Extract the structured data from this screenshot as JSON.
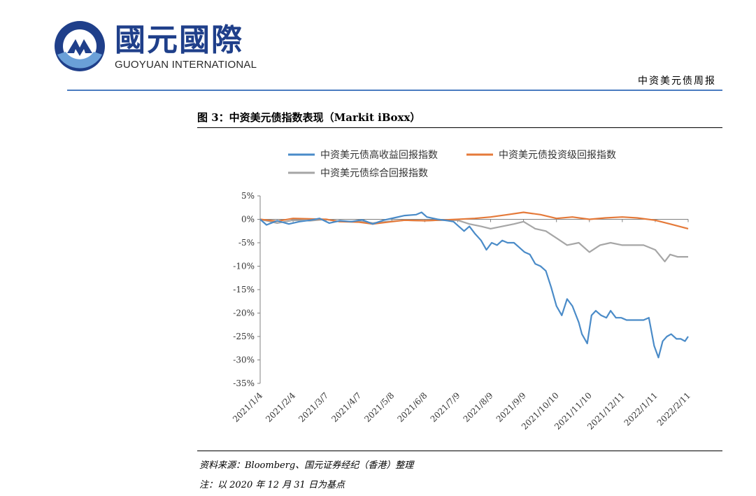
{
  "header": {
    "logo_cn": "國元國際",
    "logo_en": "GUOYUAN INTERNATIONAL",
    "report_name": "中资美元债周报",
    "colors": {
      "brand_blue": "#1f3f8a",
      "accent_blue": "#4a7cc0"
    }
  },
  "figure": {
    "title": "图 3：中资美元债指数表现（Markit iBoxx）",
    "source_note": "资料来源：Bloomberg、国元证券经纪（香港）整理",
    "base_note": "注：以 2020 年 12 月 31 日为基点"
  },
  "chart_data": {
    "type": "line",
    "title": "",
    "xlabel": "",
    "ylabel": "",
    "ylim": [
      -35,
      5
    ],
    "yticks": [
      "5%",
      "0%",
      "-5%",
      "-10%",
      "-15%",
      "-20%",
      "-25%",
      "-30%",
      "-35%"
    ],
    "x_tick_labels": [
      "2021/1/4",
      "2021/2/4",
      "2021/3/7",
      "2021/4/7",
      "2021/5/8",
      "2021/6/8",
      "2021/7/9",
      "2021/8/9",
      "2021/9/9",
      "2021/10/10",
      "2021/11/10",
      "2021/12/11",
      "2022/1/11",
      "2022/2/11"
    ],
    "legend_position": "top",
    "grid": false,
    "series": [
      {
        "name": "中资美元债高收益回报指数",
        "color": "#4a8bc8",
        "x": [
          "2021/1/4",
          "2021/1/10",
          "2021/1/20",
          "2021/1/31",
          "2021/2/10",
          "2021/2/20",
          "2021/3/1",
          "2021/3/10",
          "2021/3/20",
          "2021/3/31",
          "2021/4/10",
          "2021/4/20",
          "2021/4/30",
          "2021/5/10",
          "2021/5/20",
          "2021/5/31",
          "2021/6/5",
          "2021/6/10",
          "2021/6/20",
          "2021/6/30",
          "2021/7/5",
          "2021/7/10",
          "2021/7/15",
          "2021/7/20",
          "2021/7/25",
          "2021/7/31",
          "2021/8/5",
          "2021/8/10",
          "2021/8/15",
          "2021/8/20",
          "2021/8/25",
          "2021/8/31",
          "2021/9/5",
          "2021/9/10",
          "2021/9/15",
          "2021/9/20",
          "2021/9/25",
          "2021/9/30",
          "2021/10/5",
          "2021/10/10",
          "2021/10/15",
          "2021/10/20",
          "2021/10/25",
          "2021/10/31",
          "2021/11/3",
          "2021/11/8",
          "2021/11/12",
          "2021/11/16",
          "2021/11/21",
          "2021/11/26",
          "2021/11/30",
          "2021/12/5",
          "2021/12/10",
          "2021/12/15",
          "2021/12/20",
          "2021/12/25",
          "2021/12/31",
          "2022/1/5",
          "2022/1/10",
          "2022/1/14",
          "2022/1/18",
          "2022/1/22",
          "2022/1/26",
          "2022/1/31",
          "2022/2/4",
          "2022/2/8",
          "2022/2/11"
        ],
        "values": [
          0,
          -1.2,
          -0.3,
          -1.0,
          -0.5,
          -0.2,
          0.2,
          -0.8,
          -0.3,
          -0.5,
          -0.1,
          -1.0,
          -0.2,
          0.3,
          0.8,
          1.0,
          1.5,
          0.5,
          0.0,
          -0.3,
          -0.5,
          -1.5,
          -2.5,
          -1.5,
          -3.0,
          -4.5,
          -6.5,
          -5.0,
          -5.5,
          -4.5,
          -5.0,
          -5.0,
          -6.0,
          -7.0,
          -7.5,
          -9.5,
          -10.0,
          -11.0,
          -14.5,
          -18.5,
          -20.5,
          -17.0,
          -18.5,
          -22.0,
          -24.5,
          -26.5,
          -20.5,
          -19.5,
          -20.5,
          -21.0,
          -19.5,
          -21.0,
          -21.0,
          -21.5,
          -21.5,
          -21.5,
          -21.5,
          -21.0,
          -27.0,
          -29.5,
          -26.0,
          -25.0,
          -24.5,
          -25.5,
          -25.5,
          -26.0,
          -25.0
        ]
      },
      {
        "name": "中资美元债投资级回报指数",
        "color": "#e57a3a",
        "x": [
          "2021/1/4",
          "2021/1/20",
          "2021/2/4",
          "2021/2/20",
          "2021/3/7",
          "2021/3/20",
          "2021/4/7",
          "2021/4/20",
          "2021/5/8",
          "2021/5/20",
          "2021/6/8",
          "2021/6/20",
          "2021/7/9",
          "2021/7/25",
          "2021/8/9",
          "2021/8/25",
          "2021/9/9",
          "2021/9/25",
          "2021/10/10",
          "2021/10/25",
          "2021/11/10",
          "2021/11/25",
          "2021/12/11",
          "2021/12/25",
          "2022/1/11",
          "2022/1/25",
          "2022/2/11"
        ],
        "values": [
          0,
          -0.4,
          0.2,
          0.1,
          0.0,
          -0.5,
          -0.6,
          -1.0,
          -0.5,
          -0.2,
          -0.3,
          -0.2,
          0.0,
          0.2,
          0.5,
          1.0,
          1.5,
          1.0,
          0.2,
          0.5,
          0.0,
          0.3,
          0.5,
          0.3,
          -0.2,
          -1.0,
          -2.0
        ]
      },
      {
        "name": "中资美元债综合回报指数",
        "color": "#a6a6a6",
        "x": [
          "2021/1/4",
          "2021/1/20",
          "2021/2/4",
          "2021/2/20",
          "2021/3/7",
          "2021/3/20",
          "2021/4/7",
          "2021/4/20",
          "2021/5/8",
          "2021/5/20",
          "2021/6/8",
          "2021/6/20",
          "2021/7/9",
          "2021/7/20",
          "2021/7/31",
          "2021/8/9",
          "2021/8/20",
          "2021/8/31",
          "2021/9/9",
          "2021/9/20",
          "2021/9/30",
          "2021/10/10",
          "2021/10/20",
          "2021/10/31",
          "2021/11/10",
          "2021/11/20",
          "2021/11/30",
          "2021/12/11",
          "2021/12/20",
          "2021/12/31",
          "2022/1/11",
          "2022/1/20",
          "2022/1/25",
          "2022/2/1",
          "2022/2/11"
        ],
        "values": [
          0,
          -0.8,
          -0.2,
          -0.3,
          0.0,
          -0.5,
          -0.4,
          -0.8,
          -0.4,
          -0.2,
          -0.3,
          -0.2,
          -0.2,
          -1.0,
          -1.5,
          -2.0,
          -1.5,
          -1.0,
          -0.5,
          -2.0,
          -2.5,
          -4.0,
          -5.5,
          -5.0,
          -7.0,
          -5.5,
          -5.0,
          -5.5,
          -5.5,
          -5.5,
          -6.5,
          -9.0,
          -7.5,
          -8.0,
          -8.0
        ]
      }
    ]
  }
}
